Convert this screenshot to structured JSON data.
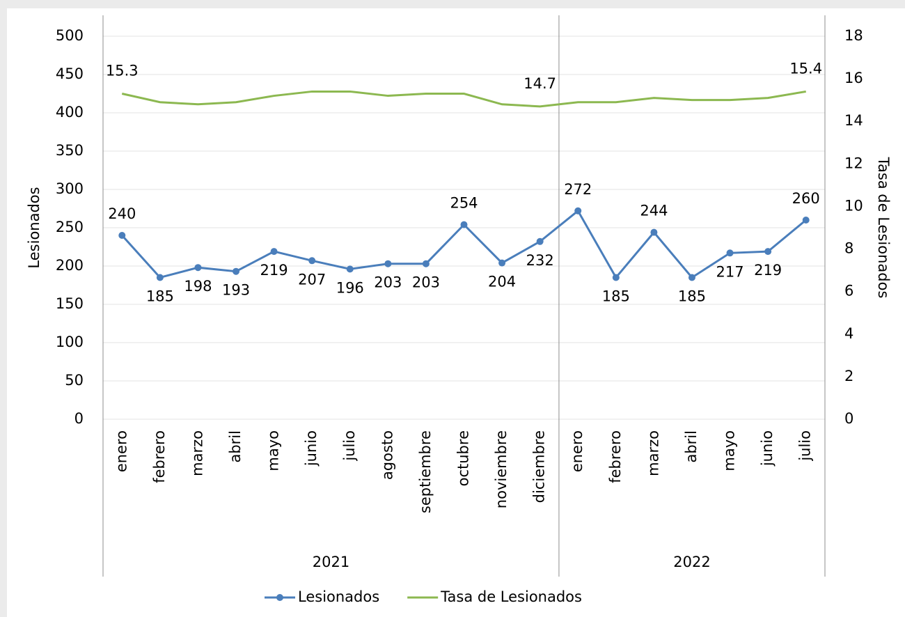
{
  "chart_data": {
    "type": "line",
    "categories": [
      "enero",
      "febrero",
      "marzo",
      "abril",
      "mayo",
      "junio",
      "julio",
      "agosto",
      "septiembre",
      "octubre",
      "noviembre",
      "diciembre",
      "enero",
      "febrero",
      "marzo",
      "abril",
      "mayo",
      "junio",
      "julio"
    ],
    "groups": [
      {
        "name": "2021",
        "count": 12
      },
      {
        "name": "2022",
        "count": 7
      }
    ],
    "series": [
      {
        "name": "Lesionados",
        "color": "#4a7ebb",
        "markers": true,
        "values": [
          240,
          185,
          198,
          193,
          219,
          207,
          196,
          203,
          203,
          254,
          204,
          232,
          272,
          185,
          244,
          185,
          217,
          219,
          260
        ]
      },
      {
        "name": "Tasa de Lesionados",
        "color": "#8cb850",
        "axis": "y2",
        "markers": false,
        "values": [
          15.3,
          14.9,
          14.8,
          14.9,
          15.2,
          15.4,
          15.4,
          15.2,
          15.3,
          15.3,
          14.8,
          14.7,
          14.9,
          14.9,
          15.1,
          15.0,
          15.0,
          15.1,
          15.4
        ],
        "value_labels": [
          "15.3",
          null,
          null,
          null,
          null,
          null,
          null,
          null,
          null,
          null,
          null,
          "14.7",
          null,
          null,
          null,
          null,
          null,
          null,
          "15.4"
        ]
      }
    ],
    "ylabel": "Lesionados",
    "y2label": "Tasa de Lesionados",
    "ylim": [
      0,
      500
    ],
    "yticks": [
      0,
      50,
      100,
      150,
      200,
      250,
      300,
      350,
      400,
      450,
      500
    ],
    "y2lim": [
      0,
      18
    ],
    "y2ticks": [
      0,
      2,
      4,
      6,
      8,
      10,
      12,
      14,
      16,
      18
    ],
    "grid": true,
    "legend": "bottom"
  }
}
